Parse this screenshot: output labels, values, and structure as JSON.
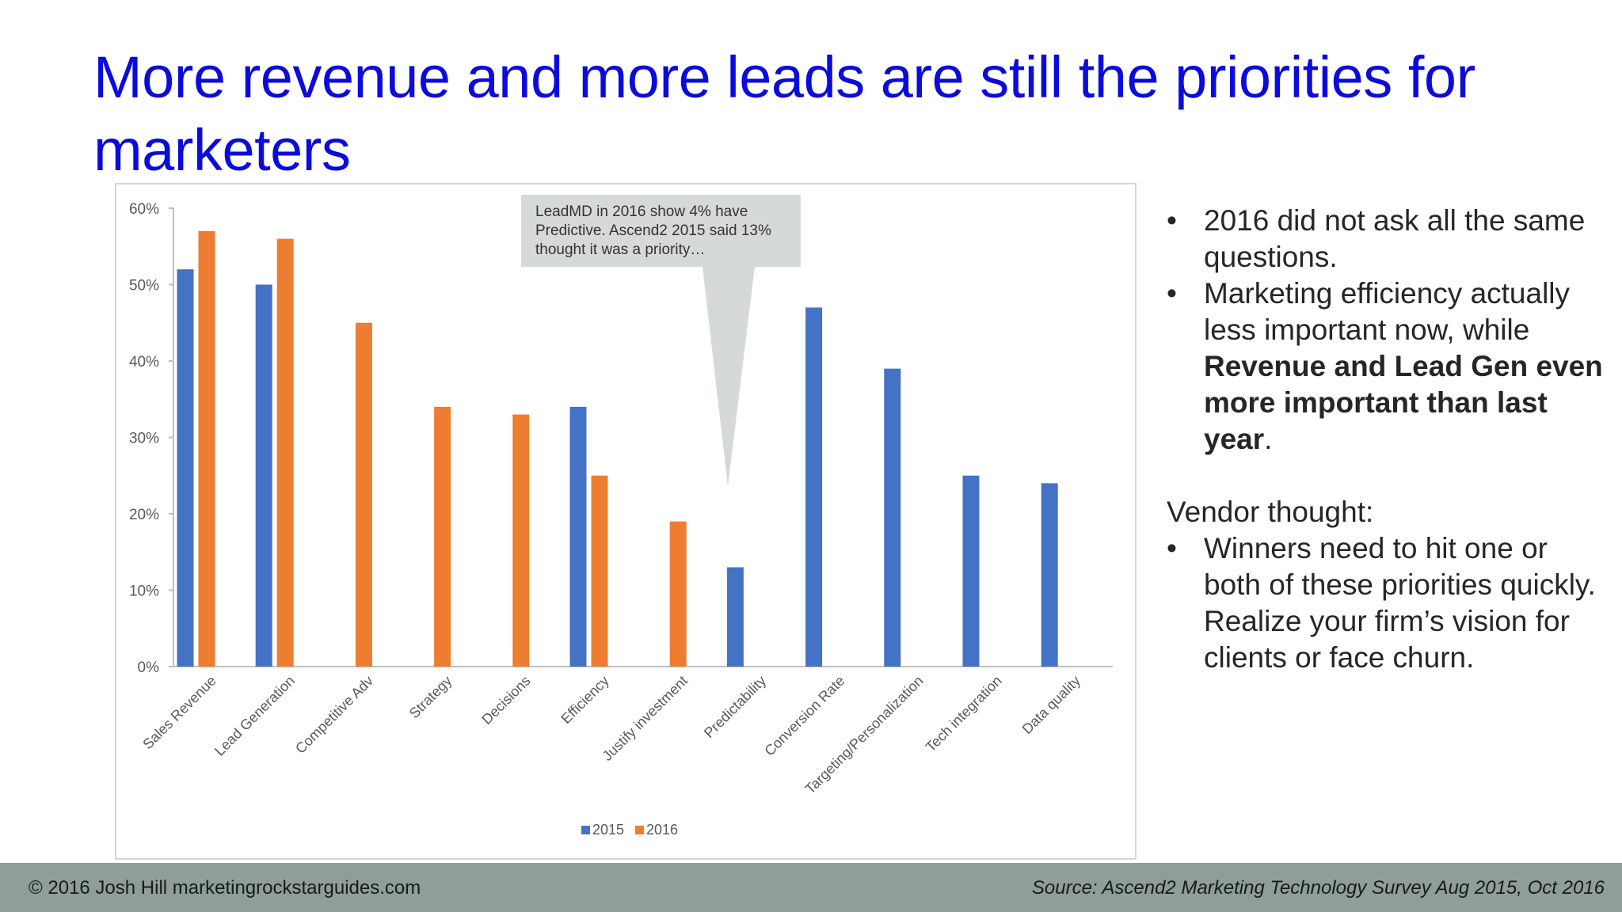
{
  "slide": {
    "title": "More revenue and more leads are still the priorities for marketers",
    "callout": "LeadMD in 2016 show 4% have Predictive. Ascend2 2015 said 13% thought it was a priority…",
    "bullets": {
      "b1": "2016 did not ask all the same questions.",
      "b2_pre": "Marketing efficiency actually less important now, while ",
      "b2_bold": "Revenue and Lead Gen even more important than last year",
      "b2_post": ".",
      "vendor_heading": "Vendor thought:",
      "b3": "Winners need to hit one or both of these priorities quickly. Realize your firm’s vision for clients or face churn."
    },
    "bullet_glyph": "•"
  },
  "footer": {
    "left": "© 2016 Josh Hill marketingrockstarguides.com",
    "right": "Source: Ascend2 Marketing Technology Survey Aug 2015, Oct 2016"
  },
  "chart_data": {
    "type": "bar",
    "categories": [
      "Sales Revenue",
      "Lead Generation",
      "Competitive Adv",
      "Strategy",
      "Decisions",
      "Efficiency",
      "Justify investment",
      "Predictability",
      "Conversion Rate",
      "Targeting/Personalization",
      "Tech integration",
      "Data quality"
    ],
    "series": [
      {
        "name": "2015",
        "color": "#4472c4",
        "values": [
          52,
          50,
          null,
          null,
          null,
          34,
          null,
          13,
          47,
          39,
          25,
          24
        ]
      },
      {
        "name": "2016",
        "color": "#ed7d31",
        "values": [
          57,
          56,
          45,
          34,
          33,
          25,
          19,
          null,
          null,
          null,
          null,
          null
        ]
      }
    ],
    "yticks": [
      "0%",
      "10%",
      "20%",
      "30%",
      "40%",
      "50%",
      "60%"
    ],
    "ylim": [
      0,
      60
    ],
    "legend_position": "bottom",
    "grid": false
  }
}
